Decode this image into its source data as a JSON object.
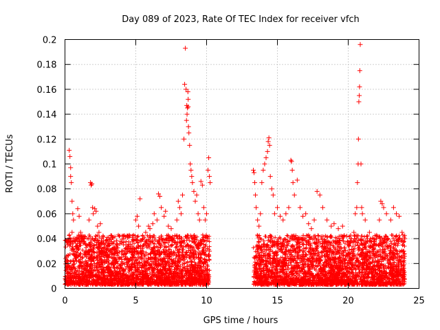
{
  "chart_data": {
    "type": "scatter",
    "title": "Day 089 of 2023, Rate Of TEC Index for receiver vfch",
    "xlabel": "GPS time / hours",
    "ylabel": "ROTI / TECUs",
    "xlim": [
      0,
      25
    ],
    "ylim": [
      0,
      0.2
    ],
    "xticks": [
      0,
      5,
      10,
      15,
      20,
      25
    ],
    "xtick_labels": [
      "0",
      "5",
      "10",
      "15",
      "20",
      "25"
    ],
    "yticks": [
      0,
      0.02,
      0.04,
      0.06,
      0.08,
      0.1,
      0.12,
      0.14,
      0.16,
      0.18,
      0.2
    ],
    "ytick_labels": [
      "0",
      "0.02",
      "0.04",
      "0.06",
      "0.08",
      "0.1",
      "0.12",
      "0.14",
      "0.16",
      "0.18",
      "0.2"
    ],
    "grid": true,
    "marker": "+",
    "color": "#ff0000",
    "series": [
      {
        "points": [
          [
            0.1,
            0.025
          ],
          [
            0.15,
            0.012
          ],
          [
            0.2,
            0.035
          ],
          [
            0.3,
            0.111
          ],
          [
            0.35,
            0.106
          ],
          [
            0.4,
            0.097
          ],
          [
            0.4,
            0.09
          ],
          [
            0.45,
            0.085
          ],
          [
            0.5,
            0.07
          ],
          [
            0.55,
            0.06
          ],
          [
            0.6,
            0.055
          ],
          [
            0.5,
            0.045
          ],
          [
            0.7,
            0.04
          ],
          [
            0.8,
            0.032
          ],
          [
            0.9,
            0.064
          ],
          [
            1.0,
            0.058
          ],
          [
            1.1,
            0.045
          ],
          [
            1.2,
            0.042
          ],
          [
            1.3,
            0.038
          ],
          [
            1.5,
            0.03
          ],
          [
            1.7,
            0.055
          ],
          [
            1.8,
            0.085
          ],
          [
            1.85,
            0.083
          ],
          [
            1.9,
            0.084
          ],
          [
            1.95,
            0.065
          ],
          [
            2.0,
            0.06
          ],
          [
            2.1,
            0.064
          ],
          [
            2.2,
            0.062
          ],
          [
            2.3,
            0.05
          ],
          [
            2.4,
            0.045
          ],
          [
            2.5,
            0.052
          ],
          [
            2.6,
            0.04
          ],
          [
            2.8,
            0.035
          ],
          [
            3.0,
            0.032
          ],
          [
            3.2,
            0.03
          ],
          [
            3.5,
            0.028
          ],
          [
            3.8,
            0.025
          ],
          [
            4.0,
            0.03
          ],
          [
            4.3,
            0.035
          ],
          [
            4.5,
            0.034
          ],
          [
            4.7,
            0.03
          ],
          [
            4.9,
            0.02
          ],
          [
            5.0,
            0.055
          ],
          [
            5.1,
            0.058
          ],
          [
            5.2,
            0.05
          ],
          [
            5.3,
            0.072
          ],
          [
            5.5,
            0.04
          ],
          [
            5.7,
            0.045
          ],
          [
            5.9,
            0.05
          ],
          [
            6.0,
            0.048
          ],
          [
            6.2,
            0.052
          ],
          [
            6.3,
            0.06
          ],
          [
            6.5,
            0.055
          ],
          [
            6.6,
            0.076
          ],
          [
            6.7,
            0.074
          ],
          [
            6.8,
            0.065
          ],
          [
            7.0,
            0.058
          ],
          [
            7.1,
            0.062
          ],
          [
            7.3,
            0.05
          ],
          [
            7.5,
            0.048
          ],
          [
            7.7,
            0.04
          ],
          [
            7.9,
            0.055
          ],
          [
            8.0,
            0.07
          ],
          [
            8.1,
            0.065
          ],
          [
            8.2,
            0.06
          ],
          [
            8.3,
            0.075
          ],
          [
            8.4,
            0.12
          ],
          [
            8.45,
            0.164
          ],
          [
            8.5,
            0.193
          ],
          [
            8.55,
            0.16
          ],
          [
            8.6,
            0.147
          ],
          [
            8.65,
            0.145
          ],
          [
            8.7,
            0.146
          ],
          [
            8.72,
            0.13
          ],
          [
            8.75,
            0.125
          ],
          [
            8.8,
            0.115
          ],
          [
            8.85,
            0.1
          ],
          [
            8.9,
            0.095
          ],
          [
            8.95,
            0.09
          ],
          [
            8.58,
            0.135
          ],
          [
            8.62,
            0.14
          ],
          [
            8.68,
            0.158
          ],
          [
            8.7,
            0.152
          ],
          [
            9.0,
            0.085
          ],
          [
            9.1,
            0.078
          ],
          [
            9.2,
            0.07
          ],
          [
            9.3,
            0.075
          ],
          [
            9.4,
            0.06
          ],
          [
            9.5,
            0.055
          ],
          [
            9.6,
            0.086
          ],
          [
            9.7,
            0.083
          ],
          [
            9.8,
            0.065
          ],
          [
            9.9,
            0.055
          ],
          [
            10.0,
            0.06
          ],
          [
            10.1,
            0.095
          ],
          [
            10.15,
            0.105
          ],
          [
            10.2,
            0.09
          ],
          [
            10.25,
            0.085
          ],
          [
            10.1,
            0.04
          ],
          [
            10.2,
            0.03
          ],
          [
            13.3,
            0.095
          ],
          [
            13.35,
            0.093
          ],
          [
            13.4,
            0.085
          ],
          [
            13.45,
            0.075
          ],
          [
            13.5,
            0.065
          ],
          [
            13.6,
            0.055
          ],
          [
            13.7,
            0.05
          ],
          [
            13.8,
            0.06
          ],
          [
            13.9,
            0.085
          ],
          [
            14.0,
            0.095
          ],
          [
            14.1,
            0.1
          ],
          [
            14.2,
            0.105
          ],
          [
            14.3,
            0.11
          ],
          [
            14.35,
            0.118
          ],
          [
            14.4,
            0.121
          ],
          [
            14.45,
            0.115
          ],
          [
            14.5,
            0.09
          ],
          [
            14.6,
            0.08
          ],
          [
            14.7,
            0.075
          ],
          [
            14.8,
            0.06
          ],
          [
            15.0,
            0.065
          ],
          [
            15.2,
            0.058
          ],
          [
            15.4,
            0.055
          ],
          [
            15.6,
            0.06
          ],
          [
            15.8,
            0.065
          ],
          [
            15.95,
            0.103
          ],
          [
            16.0,
            0.102
          ],
          [
            16.05,
            0.095
          ],
          [
            16.1,
            0.085
          ],
          [
            16.2,
            0.075
          ],
          [
            16.4,
            0.087
          ],
          [
            16.6,
            0.065
          ],
          [
            16.8,
            0.058
          ],
          [
            17.0,
            0.06
          ],
          [
            17.2,
            0.052
          ],
          [
            17.4,
            0.048
          ],
          [
            17.6,
            0.055
          ],
          [
            17.8,
            0.078
          ],
          [
            18.0,
            0.075
          ],
          [
            18.2,
            0.065
          ],
          [
            18.5,
            0.055
          ],
          [
            18.8,
            0.05
          ],
          [
            19.0,
            0.052
          ],
          [
            19.3,
            0.048
          ],
          [
            19.6,
            0.05
          ],
          [
            19.9,
            0.042
          ],
          [
            20.2,
            0.04
          ],
          [
            20.4,
            0.045
          ],
          [
            20.5,
            0.06
          ],
          [
            20.6,
            0.065
          ],
          [
            20.65,
            0.085
          ],
          [
            20.7,
            0.1
          ],
          [
            20.72,
            0.12
          ],
          [
            20.75,
            0.15
          ],
          [
            20.78,
            0.155
          ],
          [
            20.8,
            0.162
          ],
          [
            20.82,
            0.175
          ],
          [
            20.85,
            0.196
          ],
          [
            20.9,
            0.1
          ],
          [
            20.95,
            0.065
          ],
          [
            21.0,
            0.06
          ],
          [
            21.2,
            0.055
          ],
          [
            21.5,
            0.045
          ],
          [
            21.8,
            0.04
          ],
          [
            22.0,
            0.04
          ],
          [
            22.2,
            0.055
          ],
          [
            22.3,
            0.07
          ],
          [
            22.4,
            0.068
          ],
          [
            22.5,
            0.065
          ],
          [
            22.7,
            0.06
          ],
          [
            23.0,
            0.055
          ],
          [
            23.2,
            0.065
          ],
          [
            23.4,
            0.06
          ],
          [
            23.6,
            0.058
          ],
          [
            23.8,
            0.045
          ],
          [
            24.0,
            0.04
          ],
          [
            23.9,
            0.03
          ],
          [
            23.5,
            0.025
          ],
          [
            23.0,
            0.02
          ],
          [
            22.5,
            0.018
          ]
        ]
      }
    ]
  }
}
